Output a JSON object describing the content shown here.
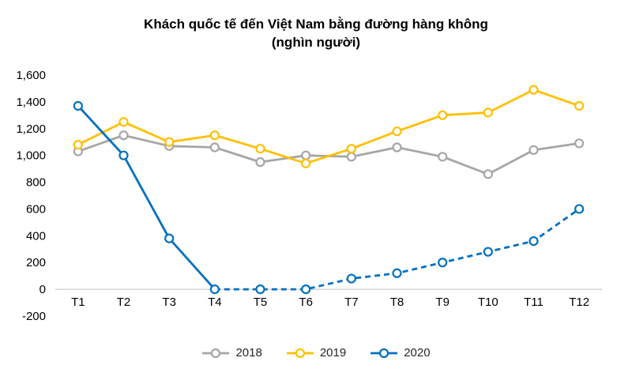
{
  "chart_data": {
    "type": "line",
    "title": "Khách quốc tế đến Việt Nam bằng đường hàng không",
    "subtitle": "(nghìn người)",
    "categories": [
      "T1",
      "T2",
      "T3",
      "T4",
      "T5",
      "T6",
      "T7",
      "T8",
      "T9",
      "T10",
      "T11",
      "T12"
    ],
    "series": [
      {
        "name": "2018",
        "color": "#A6A6A6",
        "dash_from": null,
        "values": [
          1030,
          1150,
          1070,
          1060,
          950,
          1000,
          990,
          1060,
          990,
          860,
          1040,
          1090
        ]
      },
      {
        "name": "2019",
        "color": "#FFC000",
        "dash_from": null,
        "values": [
          1080,
          1250,
          1100,
          1150,
          1050,
          940,
          1050,
          1180,
          1300,
          1320,
          1490,
          1370
        ]
      },
      {
        "name": "2020",
        "color": "#0070C0",
        "dash_from": 3,
        "values": [
          1370,
          1000,
          380,
          0,
          0,
          0,
          80,
          120,
          200,
          280,
          360,
          600
        ]
      }
    ],
    "ylim": [
      -200,
      1600
    ],
    "ytick_step": 200,
    "grid": false,
    "legend_position": "bottom",
    "axis_color": "#BFBFBF",
    "text_color": "#000000"
  }
}
